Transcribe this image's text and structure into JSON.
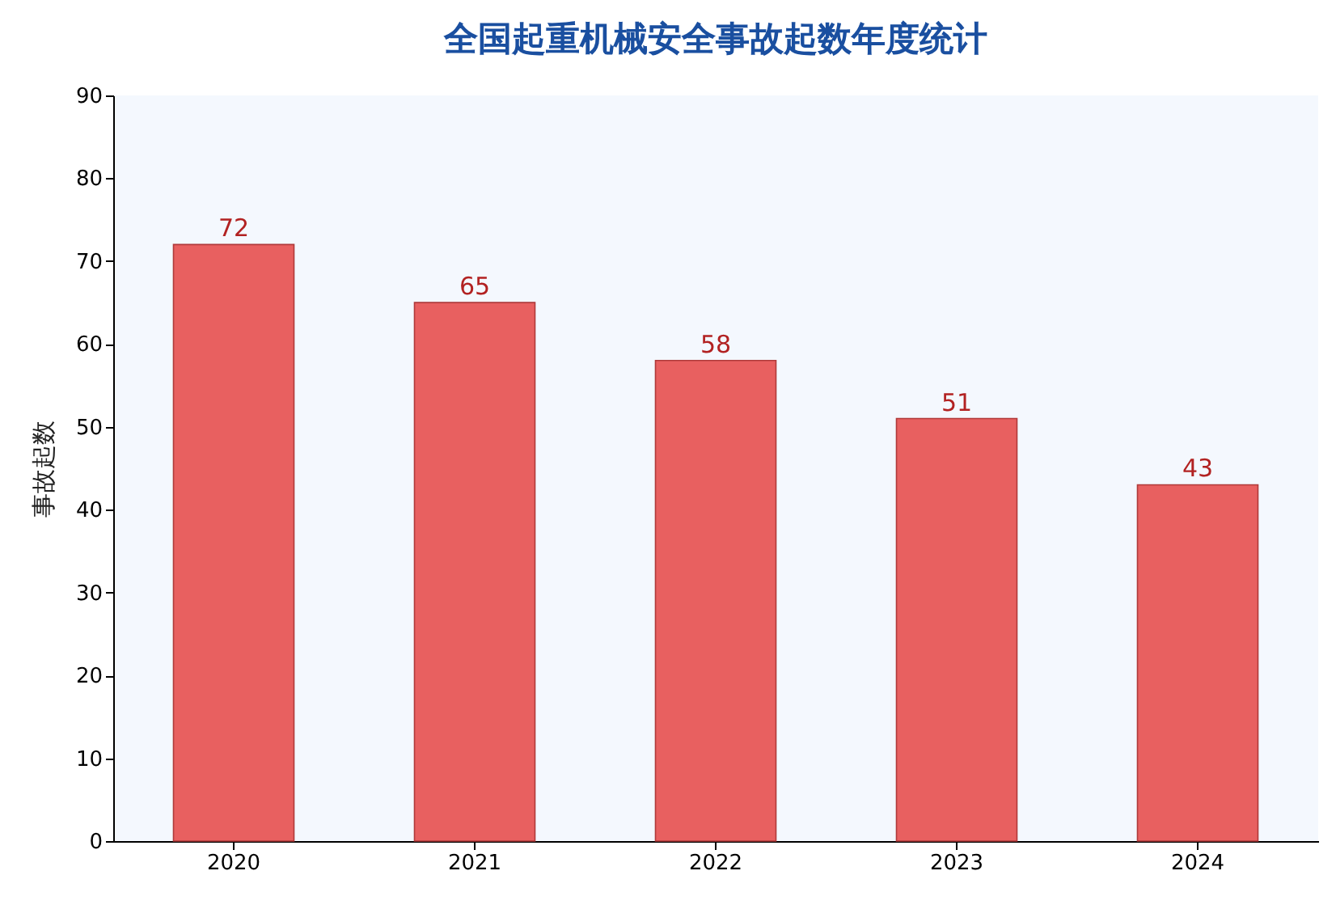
{
  "chart_data": {
    "type": "bar",
    "title": "全国起重机械安全事故起数年度统计",
    "ylabel": "事故起数",
    "categories": [
      "2020",
      "2021",
      "2022",
      "2023",
      "2024"
    ],
    "values": [
      72,
      65,
      58,
      51,
      43
    ],
    "color": "#e86060",
    "ylim": [
      0,
      90
    ],
    "yticks": [
      0,
      10,
      20,
      30,
      40,
      50,
      60,
      70,
      80,
      90
    ],
    "grid": false,
    "data_labels": true
  }
}
